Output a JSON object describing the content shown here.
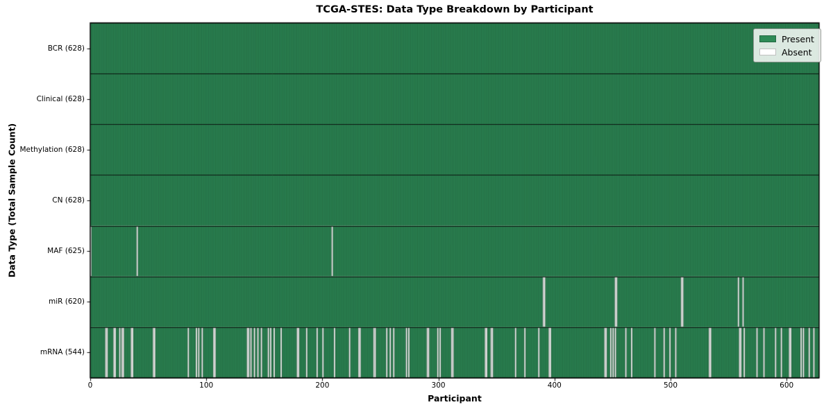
{
  "title": "TCGA-STES: Data Type Breakdown by Participant",
  "chart_data": {
    "type": "heatmap",
    "title": "TCGA-STES: Data Type Breakdown by Participant",
    "xlabel": "Participant",
    "ylabel": "Data Type (Total Sample Count)",
    "x_ticks": [
      0,
      100,
      200,
      300,
      400,
      500,
      600
    ],
    "x_range": [
      0,
      628
    ],
    "n_participants": 628,
    "grid": false,
    "legend_position": "upper right",
    "legend": [
      {
        "label": "Present",
        "color": "#2E8B57"
      },
      {
        "label": "Absent",
        "color": "#FFFFFF"
      }
    ],
    "colors": {
      "present": "#2E8B57",
      "absent": "#FFFFFF",
      "edge": "#000000"
    },
    "rows": [
      {
        "label": "BCR (628)",
        "data_type": "BCR",
        "present_count": 628,
        "absent_indices": []
      },
      {
        "label": "Clinical (628)",
        "data_type": "Clinical",
        "present_count": 628,
        "absent_indices": []
      },
      {
        "label": "Methylation (628)",
        "data_type": "Methylation",
        "present_count": 628,
        "absent_indices": []
      },
      {
        "label": "CN (628)",
        "data_type": "CN",
        "present_count": 628,
        "absent_indices": []
      },
      {
        "label": "MAF (625)",
        "data_type": "MAF",
        "present_count": 625,
        "absent_indices": [
          0,
          40,
          208
        ]
      },
      {
        "label": "miR (620)",
        "data_type": "miR",
        "present_count": 620,
        "absent_indices": [
          390,
          391,
          452,
          453,
          509,
          510,
          558,
          562
        ]
      },
      {
        "label": "mRNA (544)",
        "data_type": "mRNA",
        "present_count": 544,
        "absent_indices": [
          13,
          14,
          20,
          21,
          25,
          27,
          28,
          35,
          36,
          54,
          55,
          84,
          91,
          93,
          96,
          106,
          107,
          135,
          136,
          138,
          141,
          144,
          147,
          153,
          155,
          158,
          164,
          178,
          179,
          186,
          195,
          200,
          210,
          223,
          231,
          232,
          244,
          245,
          255,
          258,
          261,
          272,
          274,
          290,
          291,
          299,
          301,
          311,
          312,
          340,
          341,
          345,
          346,
          366,
          374,
          386,
          395,
          396,
          443,
          444,
          448,
          450,
          452,
          461,
          466,
          486,
          494,
          499,
          504,
          533,
          534,
          559,
          560,
          563,
          574,
          580,
          590,
          595,
          602,
          603,
          612,
          614,
          619,
          623
        ]
      }
    ]
  }
}
